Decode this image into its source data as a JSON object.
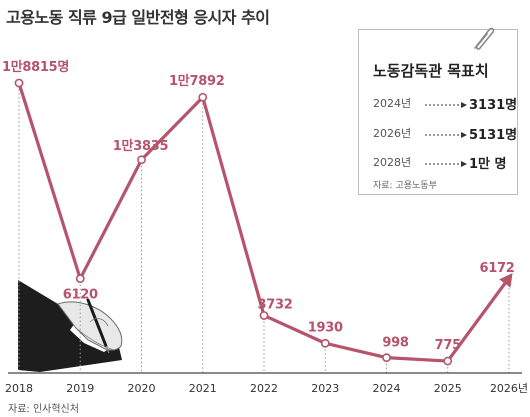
{
  "chart_data": {
    "type": "line",
    "title": "고용노동 직류 9급 일반전형 응시자 추이",
    "source": "자료: 인사혁신처",
    "x": [
      "2018",
      "2019",
      "2020",
      "2021",
      "2022",
      "2023",
      "2024",
      "2025",
      "2026년"
    ],
    "series": [
      {
        "values": [
          18815,
          6120,
          13835,
          17892,
          3732,
          1930,
          998,
          775,
          6172
        ],
        "labels": [
          "1만8815명",
          "6120",
          "1만3835",
          "1만7892",
          "3732",
          "1930",
          "998",
          "775",
          "6172"
        ]
      }
    ],
    "ylim": [
      0,
      20000
    ],
    "grid": "vertical dotted lines at each year",
    "line_color": "#b5546b",
    "last_segment_arrow": true
  },
  "target_box": {
    "title": "노동감독관 목표치",
    "rows": [
      {
        "year": "2024년",
        "value": "3131명"
      },
      {
        "year": "2026년",
        "value": "5131명"
      },
      {
        "year": "2028년",
        "value": "1만 명"
      }
    ],
    "source": "자료: 고용노동부",
    "icon": "paperclip-icon"
  },
  "illustration": {
    "icon": "hand-writing-icon"
  }
}
